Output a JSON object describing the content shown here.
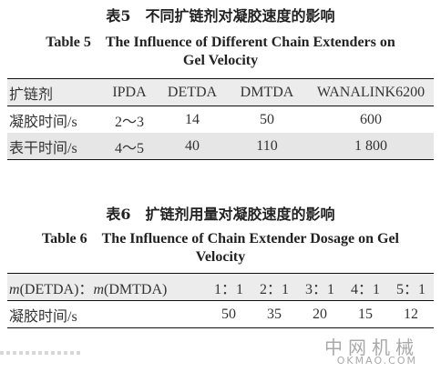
{
  "table5": {
    "title_cn": "表5　不同扩链剂对凝胶速度的影响",
    "title_en_line1": "Table 5　The Influence of Different Chain Extenders on",
    "title_en_line2": "Gel Velocity",
    "header": [
      "扩链剂",
      "IPDA",
      "DETDA",
      "DMTDA",
      "WANALINK6200"
    ],
    "rows": [
      {
        "label": "凝胶时间/s",
        "values": [
          "2～3",
          "14",
          "50",
          "600"
        ]
      },
      {
        "label": "表干时间/s",
        "values": [
          "4～5",
          "40",
          "110",
          "1 800"
        ]
      }
    ]
  },
  "table6": {
    "title_cn": "表6　扩链剂用量对凝胶速度的影响",
    "title_en_line1": "Table 6　The Influence of Chain Extender Dosage on Gel",
    "title_en_line2": "Velocity",
    "header_m1": "m",
    "header_detda": "(DETDA)：",
    "header_m2": "m",
    "header_dmtda": "(DMTDA)",
    "ratios": [
      "1：1",
      "2：1",
      "3：1",
      "4：1",
      "5：1"
    ],
    "row_label": "凝胶时间/s",
    "row_values": [
      "50",
      "35",
      "20",
      "15",
      "12"
    ]
  },
  "watermark": {
    "cn": "中网机械",
    "en": "OKMAO.COM"
  }
}
